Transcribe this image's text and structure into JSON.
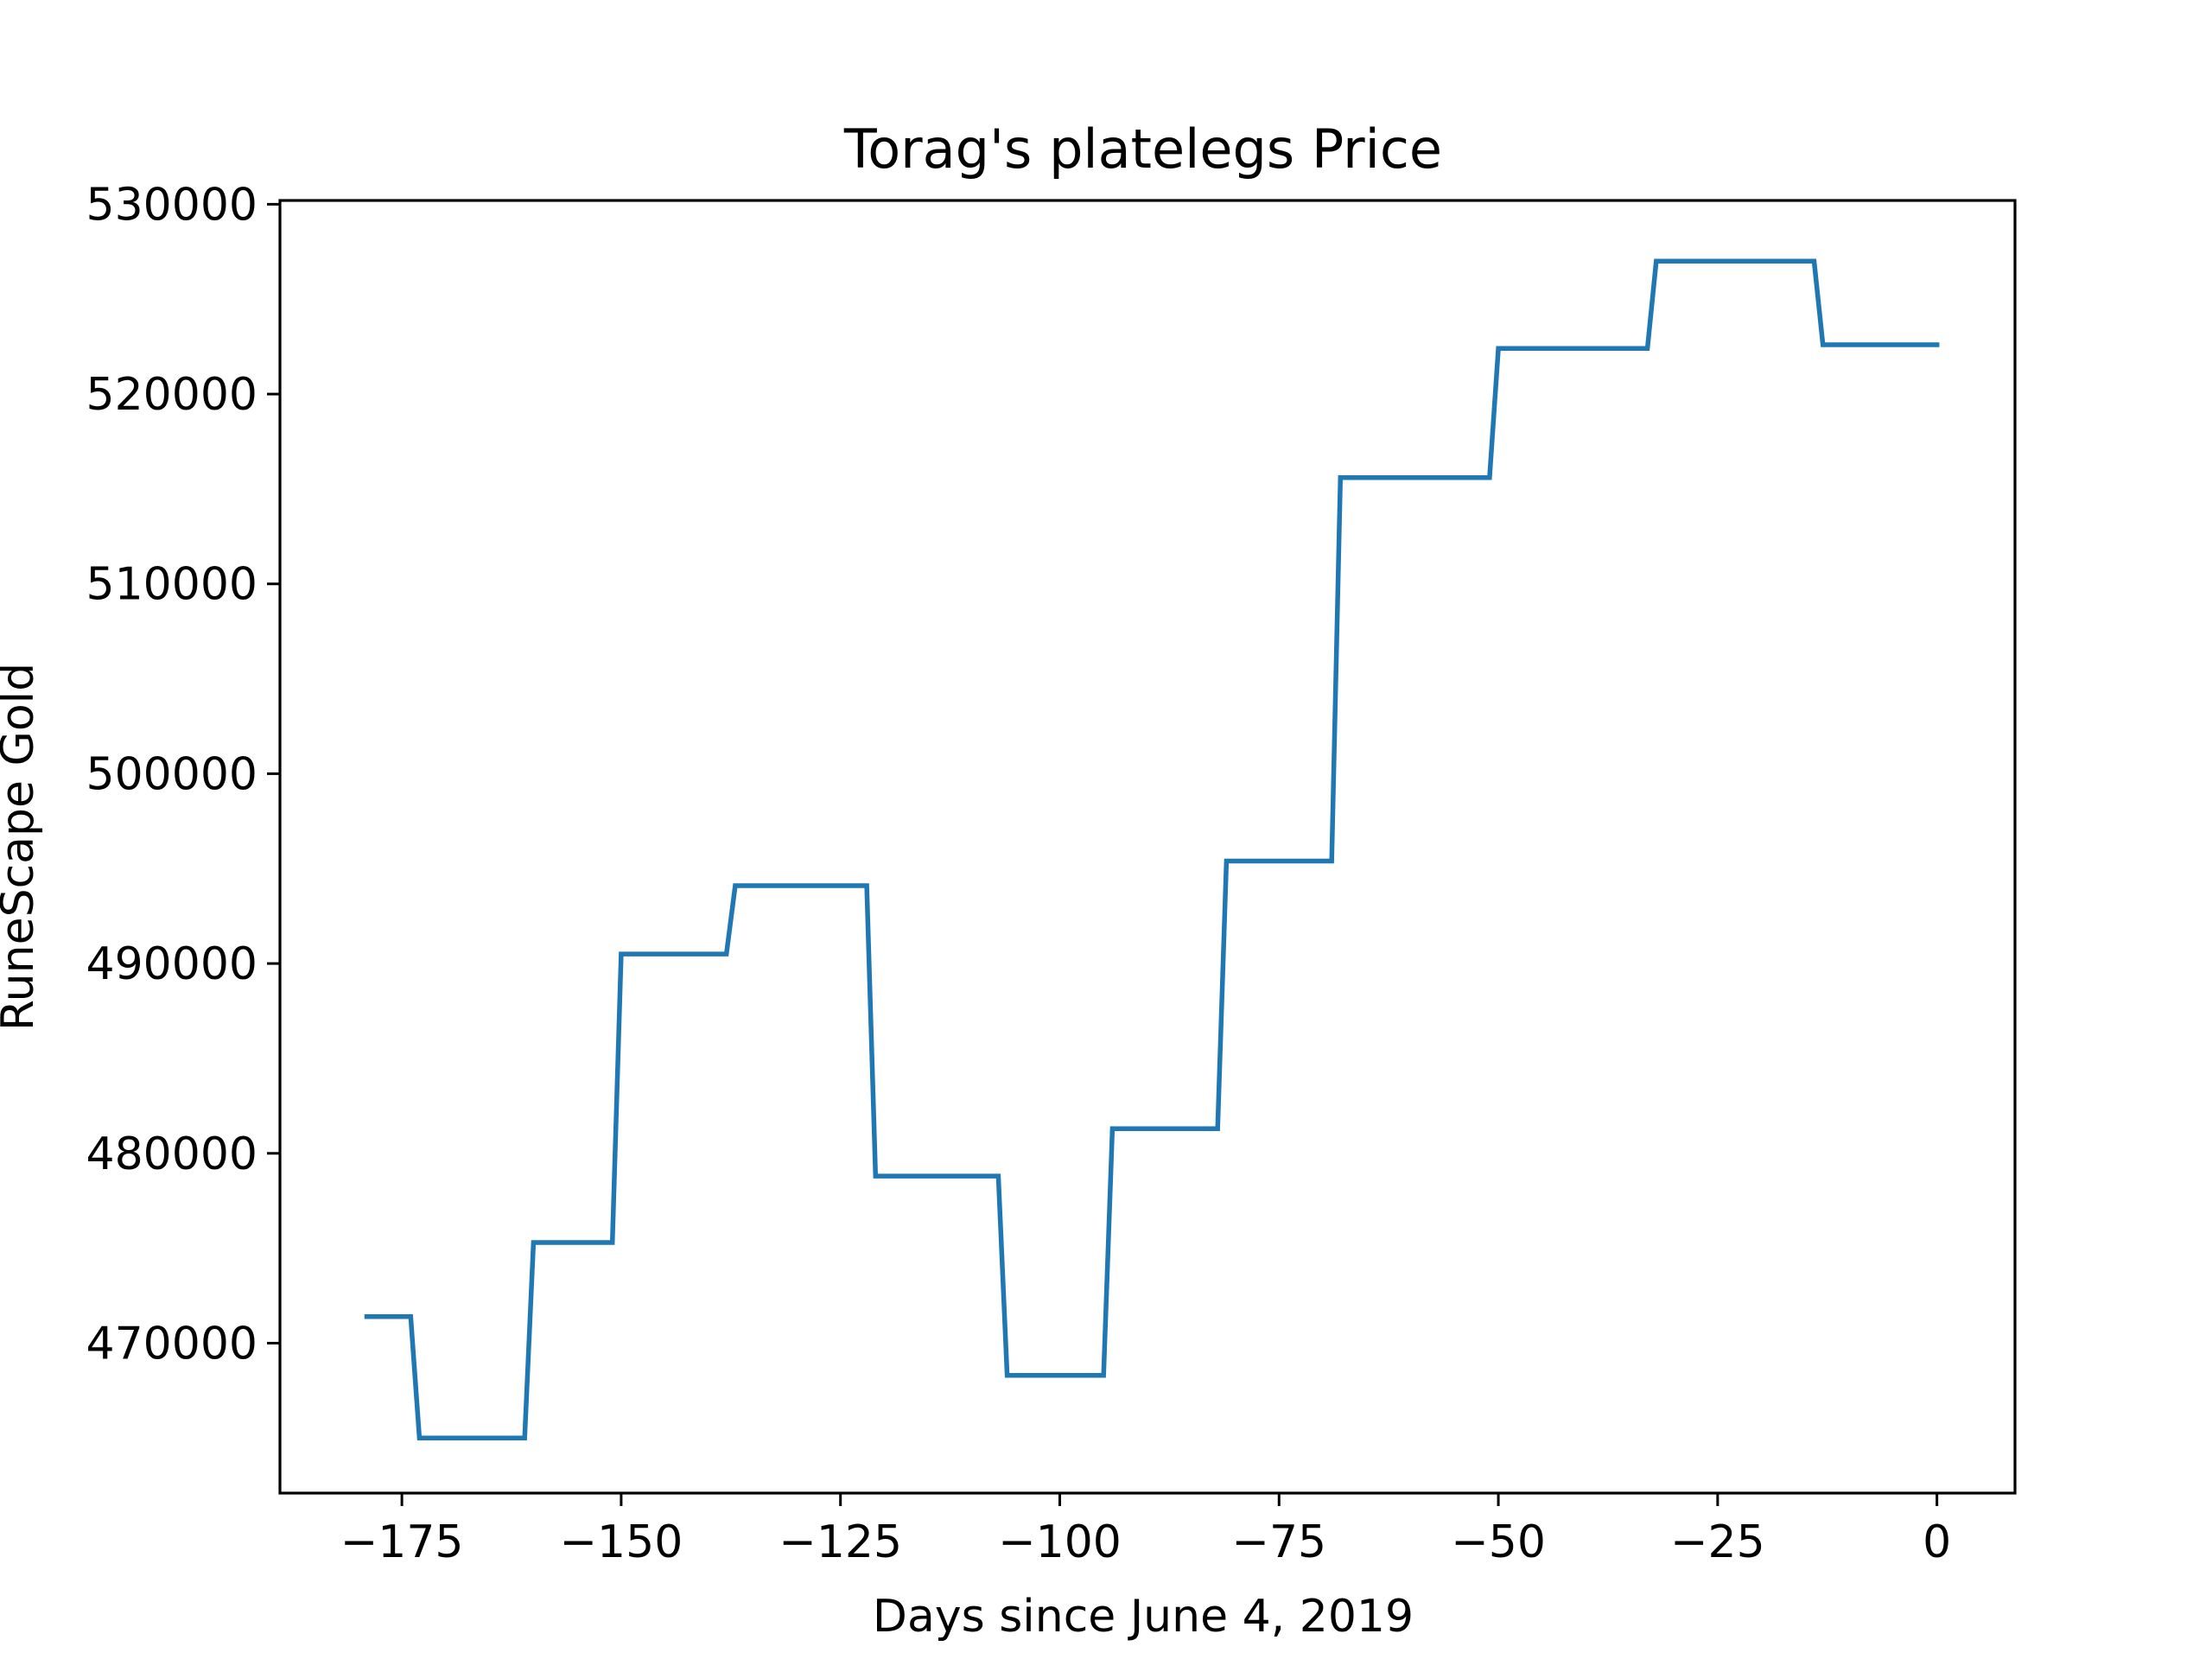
{
  "chart_data": {
    "type": "line",
    "title": "Torag's platelegs Price",
    "xlabel": "Days since June 4, 2019",
    "ylabel": "RuneScape Gold",
    "xlim": [
      -188.9,
      8.9
    ],
    "ylim": [
      462100,
      530200
    ],
    "xticks": [
      -175,
      -150,
      -125,
      -100,
      -75,
      -50,
      -25,
      0
    ],
    "xtick_labels": [
      "−175",
      "−150",
      "−125",
      "−100",
      "−75",
      "−50",
      "−25",
      "0"
    ],
    "yticks": [
      470000,
      480000,
      490000,
      500000,
      510000,
      520000,
      530000
    ],
    "ytick_labels": [
      "470000",
      "480000",
      "490000",
      "500000",
      "510000",
      "520000",
      "530000"
    ],
    "grid": false,
    "series": [
      {
        "color": "#1f77b4",
        "x": [
          -179,
          -174,
          -173,
          -161,
          -160,
          -151,
          -150,
          -138,
          -137,
          -122,
          -121,
          -107,
          -106,
          -95,
          -94,
          -82,
          -81,
          -69,
          -68,
          -51,
          -50,
          -33,
          -32,
          -14,
          -13,
          0
        ],
        "y": [
          471400,
          471400,
          465000,
          465000,
          475300,
          475300,
          490500,
          490500,
          494100,
          494100,
          478800,
          478800,
          468300,
          468300,
          481300,
          481300,
          495400,
          495400,
          515600,
          515600,
          522400,
          522400,
          527000,
          527000,
          522600,
          522600
        ]
      }
    ]
  }
}
